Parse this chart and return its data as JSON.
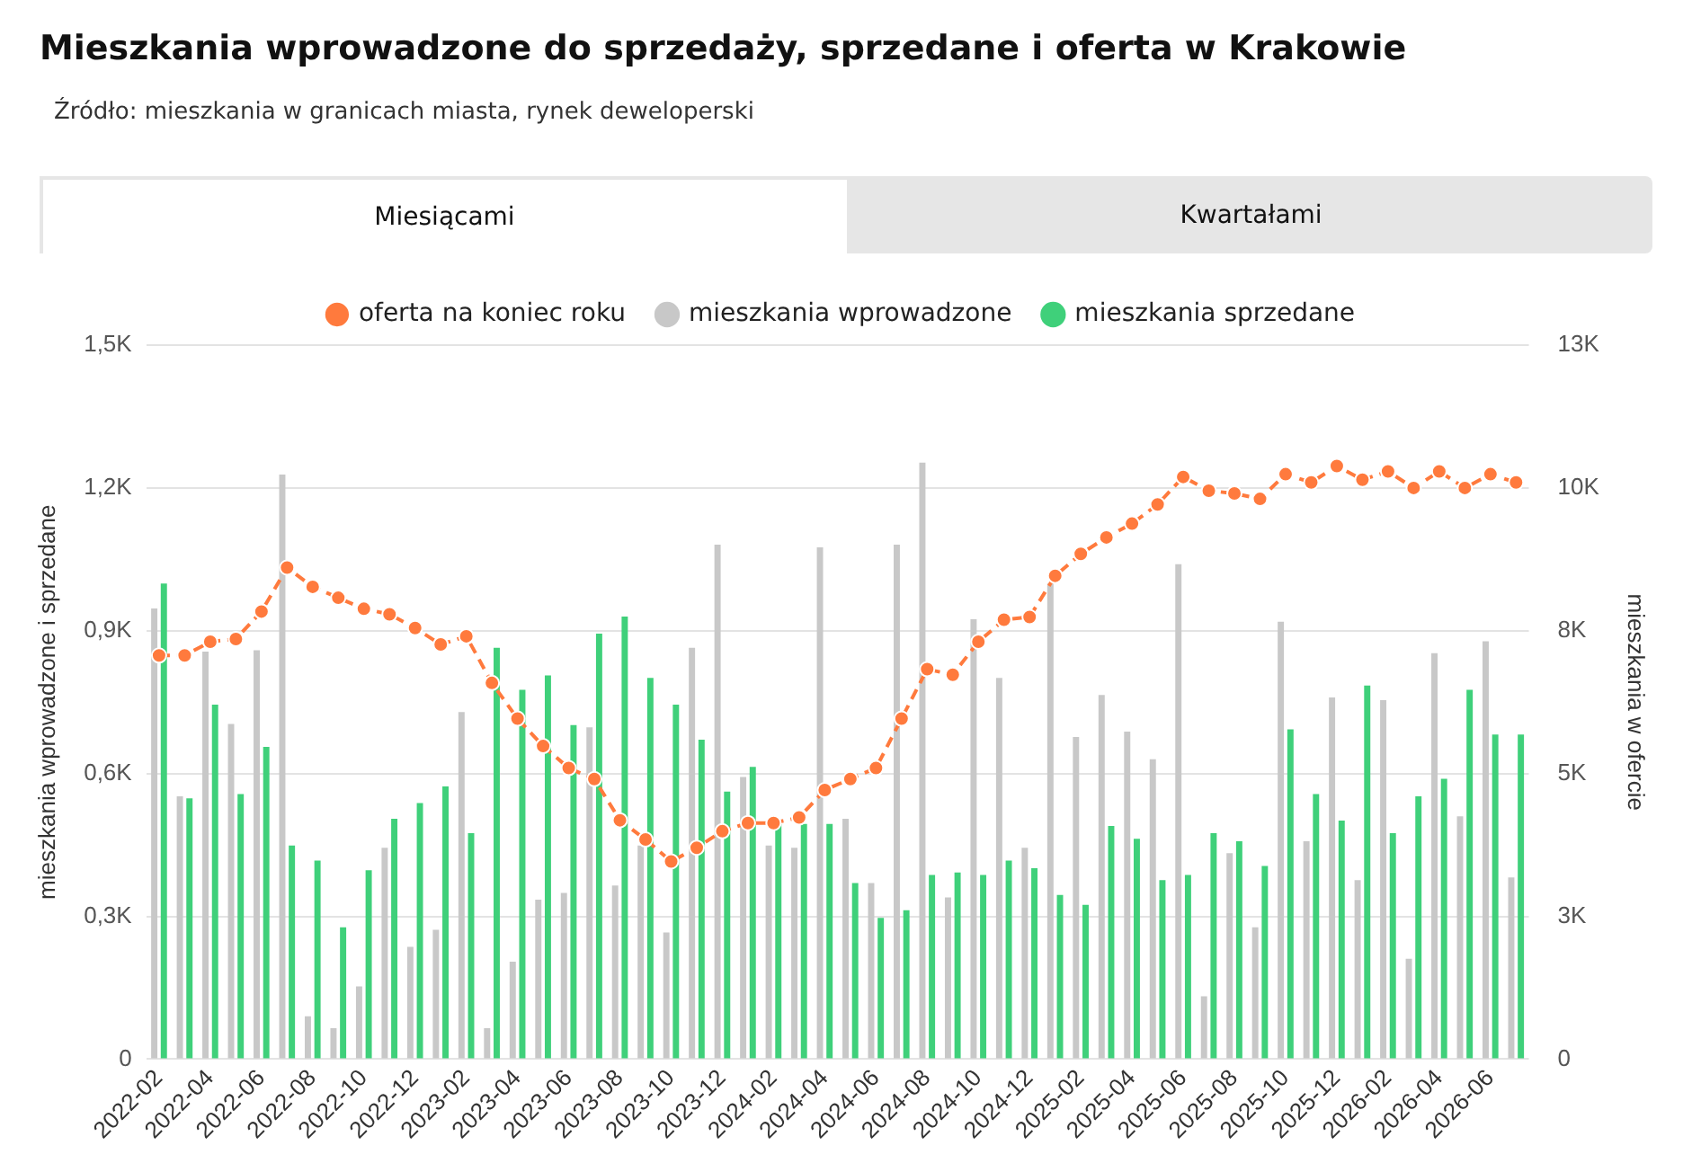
{
  "chart_data": {
    "type": "bar",
    "title": "Mieszkania wprowadzone do sprzedaży, sprzedane i oferta w Krakowie",
    "subtitle": "Źródło: mieszkania w granicach miasta, rynek deweloperski",
    "annotations": [
      "Miesiącami",
      "Kwartałami"
    ],
    "ylabel": "mieszkania wprowadzone i sprzedane",
    "y2label": "mieszkania w ofercie",
    "categories": [
      "2022-02",
      null,
      "2022-04",
      null,
      "2022-06",
      null,
      "2022-08",
      null,
      "2022-10",
      null,
      "2022-12",
      null,
      "2023-02",
      null,
      "2023-04",
      null,
      "2023-06",
      null,
      "2023-08",
      null,
      "2023-10",
      null,
      "2023-12",
      null,
      "2024-02",
      null,
      "2024-04",
      null,
      "2024-06",
      null,
      "2024-08",
      null,
      "2024-10",
      null,
      "2024-12",
      null,
      "2025-02",
      null,
      "2025-04",
      null,
      "2025-06",
      null,
      "2025-08",
      null,
      "2025-10",
      null,
      "2025-12",
      null,
      "2026-02",
      null,
      "2026-04",
      null,
      "2026-06",
      null
    ],
    "series": [
      {
        "name": "oferta na koniec roku",
        "type": "line",
        "axis": "y2",
        "color": "#ff7a3d",
        "values": [
          7350,
          7350,
          7600,
          7650,
          8150,
          8950,
          8600,
          8400,
          8200,
          8100,
          7850,
          7550,
          7700,
          6850,
          6200,
          5700,
          5300,
          5100,
          4350,
          4000,
          3600,
          3850,
          4150,
          4300,
          4300,
          4400,
          4900,
          5100,
          5300,
          6200,
          7100,
          7000,
          7600,
          8000,
          8050,
          8800,
          9200,
          9500,
          9750,
          10100,
          10600,
          10350,
          10300,
          10200,
          10650,
          10500,
          10800,
          10550,
          10700,
          10400,
          10700,
          10400,
          10650,
          10500
        ]
      },
      {
        "name": "mieszkania wprowadzone",
        "color": "#c8c8c8",
        "values": [
          947,
          552,
          856,
          704,
          859,
          1228,
          90,
          65,
          153,
          444,
          236,
          272,
          729,
          65,
          205,
          335,
          349,
          697,
          365,
          449,
          266,
          864,
          1081,
          593,
          449,
          444,
          1075,
          505,
          370,
          1081,
          1253,
          340,
          924,
          801,
          444,
          999,
          677,
          765,
          688,
          630,
          1040,
          132,
          433,
          277,
          919,
          458,
          760,
          376,
          754,
          211,
          853,
          510,
          878,
          382
        ]
      },
      {
        "name": "mieszkania sprzedane",
        "color": "#3fd07a",
        "values": [
          999,
          548,
          745,
          557,
          656,
          449,
          417,
          277,
          397,
          505,
          538,
          573,
          475,
          864,
          776,
          806,
          702,
          894,
          930,
          801,
          745,
          671,
          562,
          614,
          494,
          494,
          494,
          370,
          297,
          313,
          387,
          392,
          387,
          417,
          401,
          345,
          324,
          490,
          463,
          376,
          387,
          475,
          458,
          406,
          693,
          557,
          501,
          785,
          475,
          552,
          589,
          776,
          682,
          682
        ]
      }
    ],
    "ylim": [
      0,
      1500
    ],
    "yticks": [
      0,
      {
        "value": 300,
        "label": "0,3K"
      },
      {
        "value": 600,
        "label": "0,6K"
      },
      {
        "value": 900,
        "label": "0,9K"
      },
      {
        "value": 1200,
        "label": "1,2K"
      },
      {
        "value": 1500,
        "label": "1,5K"
      }
    ],
    "y2lim": [
      0,
      13000
    ],
    "y2ticks": [
      0,
      {
        "value": 2600,
        "label": "3K"
      },
      {
        "value": 5200,
        "label": "5K"
      },
      {
        "value": 7800,
        "label": "8K"
      },
      {
        "value": 10400,
        "label": "10K"
      },
      {
        "value": 13000,
        "label": "13K"
      }
    ],
    "grid": "y",
    "legend": "top",
    "marker": "circle",
    "line_style": "dashed"
  }
}
